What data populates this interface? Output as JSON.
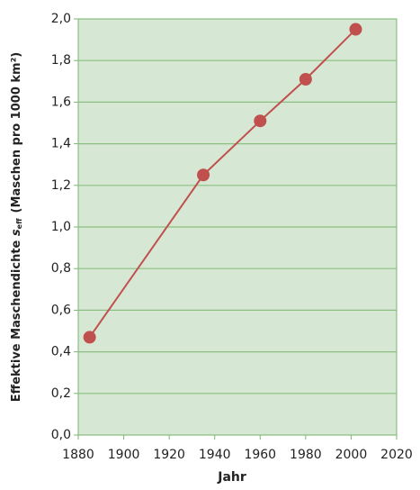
{
  "chart_data": {
    "type": "line",
    "ylabel": {
      "main": "Effektive Maschendichte",
      "symbol": "s",
      "subscript": "eff",
      "unit": "(Maschen pro 1000 km²)"
    },
    "xlabel": "Jahr",
    "x": [
      1885,
      1935,
      1960,
      1980,
      2002
    ],
    "series": [
      {
        "color": "#c0504d",
        "values": [
          0.47,
          1.25,
          1.51,
          1.71,
          1.95
        ]
      }
    ],
    "xlim": [
      1880,
      2020
    ],
    "xticks": [
      1880,
      1900,
      1920,
      1940,
      1960,
      1980,
      2000,
      2020
    ],
    "ylim": [
      0,
      2.0
    ],
    "yticks": [
      {
        "value": 0,
        "label": "0,0"
      },
      {
        "value": 0.2,
        "label": "0,2"
      },
      {
        "value": 0.4,
        "label": "0,4"
      },
      {
        "value": 0.6,
        "label": "0,6"
      },
      {
        "value": 0.8,
        "label": "0,8"
      },
      {
        "value": 1.0,
        "label": "1,0"
      },
      {
        "value": 1.2,
        "label": "1,2"
      },
      {
        "value": 1.4,
        "label": "1,4"
      },
      {
        "value": 1.6,
        "label": "1,6"
      },
      {
        "value": 1.8,
        "label": "1,8"
      },
      {
        "value": 2.0,
        "label": "2,0"
      }
    ],
    "grid": true
  }
}
